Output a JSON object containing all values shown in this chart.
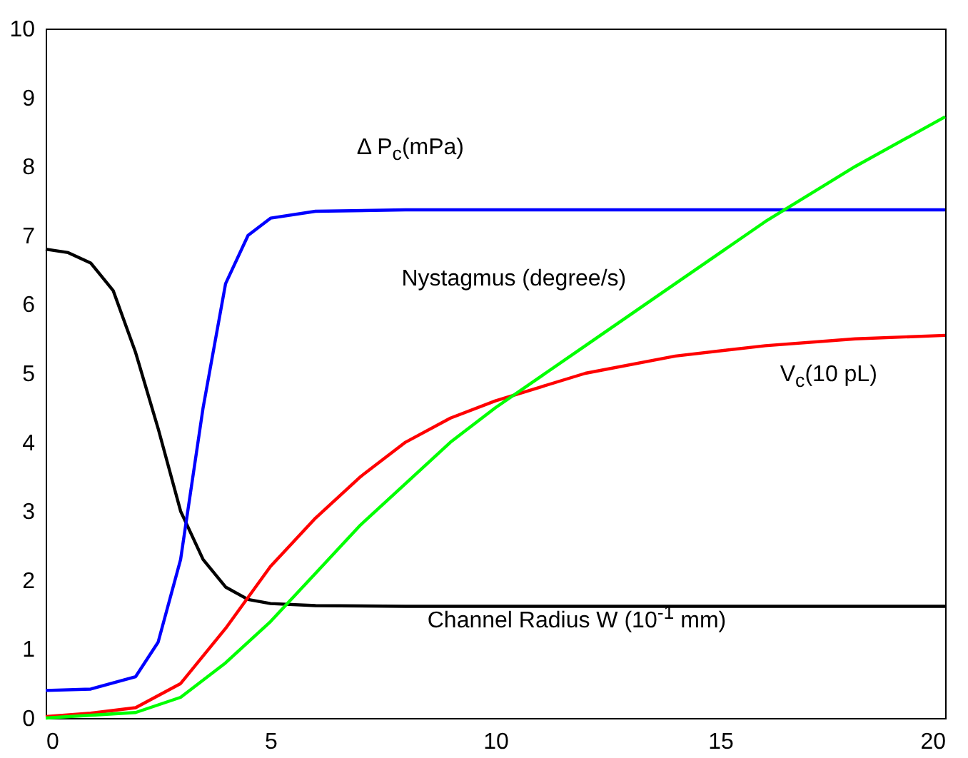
{
  "chart_data": {
    "type": "line",
    "xlim": [
      0,
      20
    ],
    "ylim": [
      0,
      10
    ],
    "xticks": [
      0,
      5,
      10,
      15,
      20
    ],
    "yticks": [
      0,
      1,
      2,
      3,
      4,
      5,
      6,
      7,
      8,
      9,
      10
    ],
    "grid": false,
    "marker": "none",
    "line_style": "solid",
    "series": [
      {
        "name": "Channel Radius W (10$^{-1}$ mm)",
        "color": "#000000",
        "x": [
          0,
          0.5,
          1,
          1.5,
          2,
          2.5,
          3,
          3.5,
          4,
          4.5,
          5,
          6,
          8,
          12,
          20
        ],
        "values": [
          6.8,
          6.75,
          6.6,
          6.2,
          5.3,
          4.2,
          3.0,
          2.3,
          1.9,
          1.72,
          1.66,
          1.63,
          1.62,
          1.62,
          1.62
        ]
      },
      {
        "name": "Δ P$_{c}$(mPa)",
        "color": "#0000ff",
        "x": [
          0,
          1,
          2,
          2.5,
          3,
          3.5,
          4,
          4.5,
          5,
          6,
          8,
          12,
          20
        ],
        "values": [
          0.4,
          0.42,
          0.6,
          1.1,
          2.3,
          4.5,
          6.3,
          7.0,
          7.25,
          7.35,
          7.37,
          7.37,
          7.37
        ]
      },
      {
        "name": "V$_{c}$(10 pL)",
        "color": "#ff0000",
        "x": [
          0,
          1,
          2,
          3,
          4,
          5,
          6,
          7,
          8,
          9,
          10,
          11,
          12,
          14,
          16,
          18,
          20
        ],
        "values": [
          0.02,
          0.07,
          0.15,
          0.5,
          1.3,
          2.2,
          2.9,
          3.5,
          4.0,
          4.35,
          4.6,
          4.8,
          5.0,
          5.25,
          5.4,
          5.5,
          5.55
        ]
      },
      {
        "name": "Nystagmus (degree/s)",
        "color": "#00ff00",
        "x": [
          0,
          2,
          3,
          4,
          5,
          6,
          7,
          8,
          9,
          10,
          11,
          12,
          14,
          16,
          18,
          20
        ],
        "values": [
          0,
          0.08,
          0.3,
          0.8,
          1.4,
          2.1,
          2.8,
          3.4,
          4.0,
          4.5,
          4.95,
          5.4,
          6.3,
          7.2,
          8.0,
          8.72
        ]
      }
    ]
  }
}
